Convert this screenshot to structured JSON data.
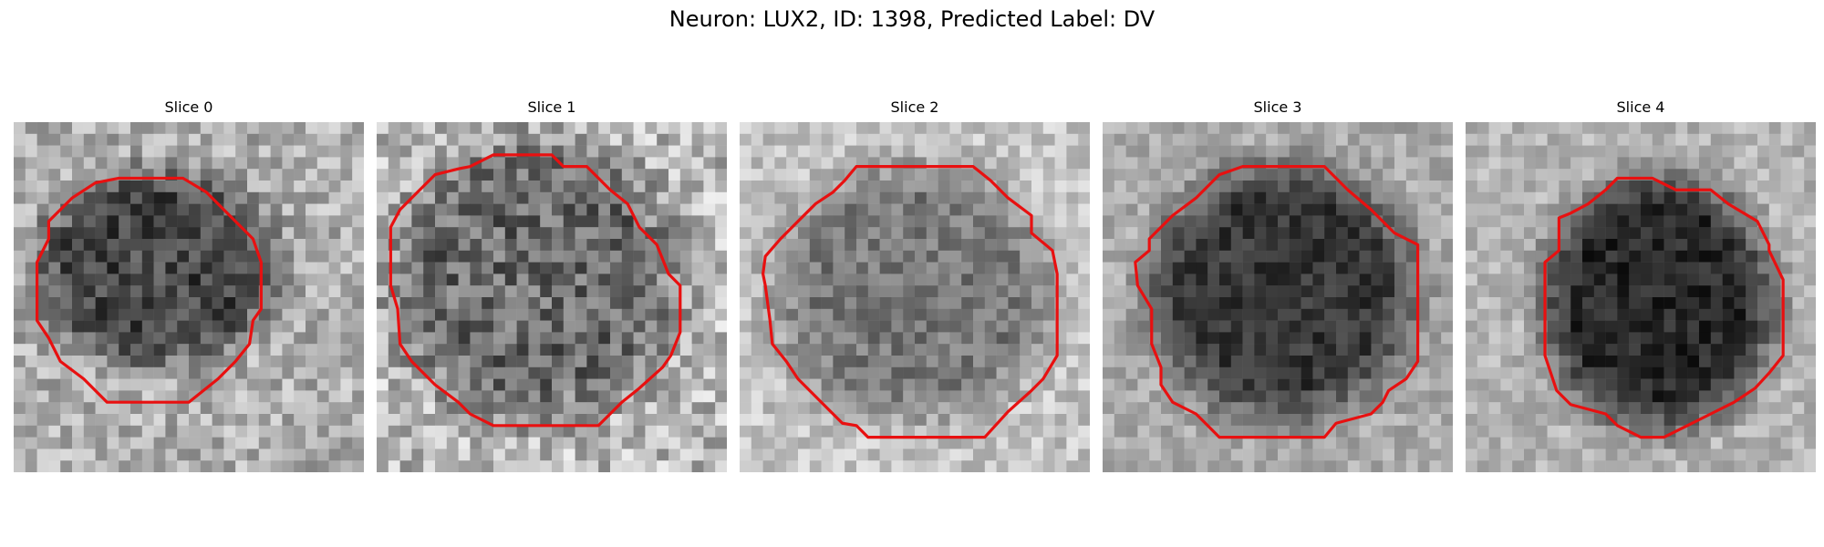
{
  "figure": {
    "title": "Neuron: LUX2, ID: 1398, Predicted Label: DV"
  },
  "contour_color": "#e81010",
  "panels": [
    {
      "title": "Slice 0"
    },
    {
      "title": "Slice 1"
    },
    {
      "title": "Slice 2"
    },
    {
      "title": "Slice 3"
    },
    {
      "title": "Slice 4"
    }
  ]
}
